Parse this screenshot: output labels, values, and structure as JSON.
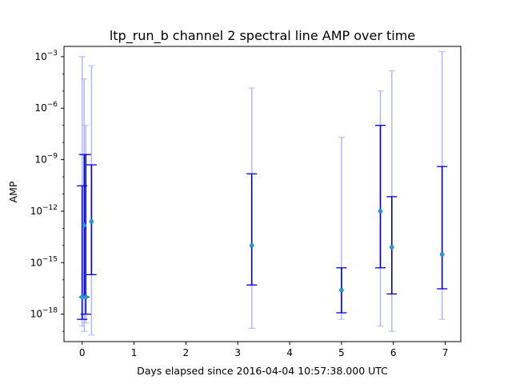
{
  "chart_data": {
    "type": "scatter",
    "title": "ltp_run_b channel 2 spectral line AMP over time",
    "xlabel": "Days elapsed since 2016-04-04 10:57:38.000 UTC",
    "ylabel": "AMP",
    "y_scale": "log",
    "grid": false,
    "xlim": [
      -0.35,
      7.3
    ],
    "ylim_log10": [
      -19.6,
      -2.4
    ],
    "x_ticks": [
      0,
      1,
      2,
      3,
      4,
      5,
      6,
      7
    ],
    "x_tick_labels": [
      "0",
      "1",
      "2",
      "3",
      "4",
      "5",
      "6",
      "7"
    ],
    "y_ticks_log10": [
      -18,
      -15,
      -12,
      -9,
      -6,
      -3
    ],
    "colors": {
      "marker": "#1f9fd0",
      "inner_error": "#0000cc",
      "outer_error": "#b4b4ff"
    },
    "points": [
      {
        "x": 0.0,
        "y": 1e-17,
        "inner": [
          5e-19,
          3e-11
        ],
        "outer": [
          2e-19,
          0.001
        ]
      },
      {
        "x": 0.04,
        "y": 1.5e-13,
        "inner": [
          1e-17,
          2e-09
        ],
        "outer": [
          1e-19,
          5e-05
        ]
      },
      {
        "x": 0.07,
        "y": 1e-17,
        "inner": [
          1e-18,
          2e-09
        ],
        "outer": [
          3e-19,
          1e-07
        ]
      },
      {
        "x": 0.18,
        "y": 2.5e-13,
        "inner": [
          2e-16,
          5e-10
        ],
        "outer": [
          6e-20,
          0.0003
        ]
      },
      {
        "x": 3.27,
        "y": 1e-14,
        "inner": [
          5e-17,
          1.5e-10
        ],
        "outer": [
          1.5e-19,
          1.5e-05
        ]
      },
      {
        "x": 5.0,
        "y": 2.5e-17,
        "inner": [
          1.2e-18,
          5e-16
        ],
        "outer": [
          5e-19,
          2e-08
        ]
      },
      {
        "x": 5.75,
        "y": 1e-12,
        "inner": [
          5e-16,
          1e-07
        ],
        "outer": [
          2e-19,
          1e-05
        ]
      },
      {
        "x": 5.97,
        "y": 8e-15,
        "inner": [
          1.5e-17,
          7e-12
        ],
        "outer": [
          1e-19,
          0.00015
        ]
      },
      {
        "x": 6.94,
        "y": 3e-15,
        "inner": [
          3e-17,
          4e-10
        ],
        "outer": [
          5e-19,
          0.002
        ]
      }
    ]
  }
}
